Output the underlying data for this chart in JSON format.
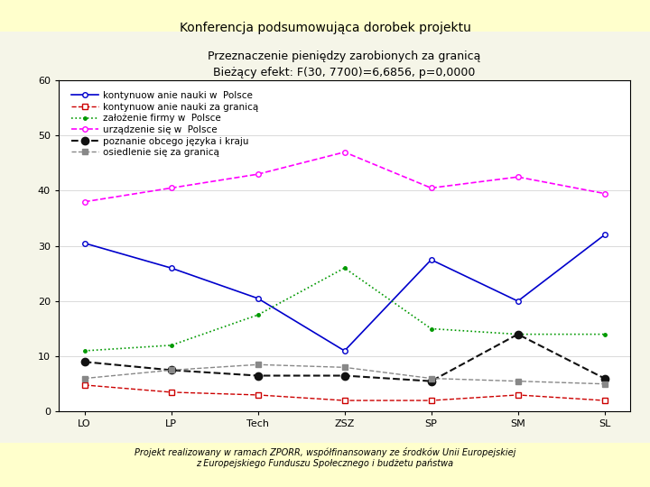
{
  "title": "Przeznaczenie pieniędzy zarobionych za granicą",
  "subtitle": "Bieżący efekt: F(30, 7700)=6,6856, p=0,0000",
  "header": "Konferencja podsumowująca dorobek projektu",
  "footer_line1": "Projekt realizowany w ramach ZPORR, współfinansowany ze środków Unii Europejskiej",
  "footer_line2": "z Europejskiego Funduszu Społecznego i budżetu państwa",
  "categories": [
    "LO",
    "LP",
    "Tech",
    "ZSZ",
    "SP",
    "SM",
    "SL"
  ],
  "series": [
    {
      "label": "kontynuow anie nauki w  Polsce",
      "color": "#0000CC",
      "ls": "-",
      "marker": "o",
      "ms": 4,
      "lw": 1.2,
      "mfc": "white",
      "mec": "#0000CC",
      "values": [
        30.5,
        26.0,
        20.5,
        11.0,
        27.5,
        20.0,
        32.0
      ]
    },
    {
      "label": "kontynuow anie nauki za granicą",
      "color": "#CC0000",
      "ls": "--",
      "marker": "s",
      "ms": 4,
      "lw": 1.0,
      "mfc": "white",
      "mec": "#CC0000",
      "values": [
        4.8,
        3.5,
        3.0,
        2.0,
        2.0,
        3.0,
        2.0
      ]
    },
    {
      "label": "założenie firmy w  Polsce",
      "color": "#009900",
      "ls": ":",
      "marker": ".",
      "ms": 5,
      "lw": 1.2,
      "mfc": "#009900",
      "mec": "#009900",
      "values": [
        11.0,
        12.0,
        17.5,
        26.0,
        15.0,
        14.0,
        14.0
      ]
    },
    {
      "label": "urządzenie się w  Polsce",
      "color": "#FF00FF",
      "ls": "--",
      "marker": "o",
      "ms": 4,
      "lw": 1.2,
      "mfc": "white",
      "mec": "#FF00FF",
      "values": [
        38.0,
        40.5,
        43.0,
        47.0,
        40.5,
        42.5,
        39.5
      ]
    },
    {
      "label": "poznanie obcego języka i kraju",
      "color": "#111111",
      "ls": "--",
      "marker": "o",
      "ms": 6,
      "lw": 1.5,
      "mfc": "#111111",
      "mec": "#111111",
      "values": [
        9.0,
        7.5,
        6.5,
        6.5,
        5.5,
        14.0,
        6.0
      ]
    },
    {
      "label": "osiedlenie się za granicą",
      "color": "#888888",
      "ls": "--",
      "marker": "s",
      "ms": 4,
      "lw": 1.0,
      "mfc": "#888888",
      "mec": "#888888",
      "values": [
        6.0,
        7.5,
        8.5,
        8.0,
        6.0,
        5.5,
        5.0
      ]
    }
  ],
  "ylim": [
    0,
    60
  ],
  "yticks": [
    0,
    10,
    20,
    30,
    40,
    50,
    60
  ],
  "bg_outer": "#FFFFCC",
  "bg_plot": "#FFFFFF",
  "title_fontsize": 9,
  "subtitle_fontsize": 8,
  "header_fontsize": 10,
  "footer_fontsize": 7,
  "axis_fontsize": 8,
  "legend_fontsize": 7.5
}
